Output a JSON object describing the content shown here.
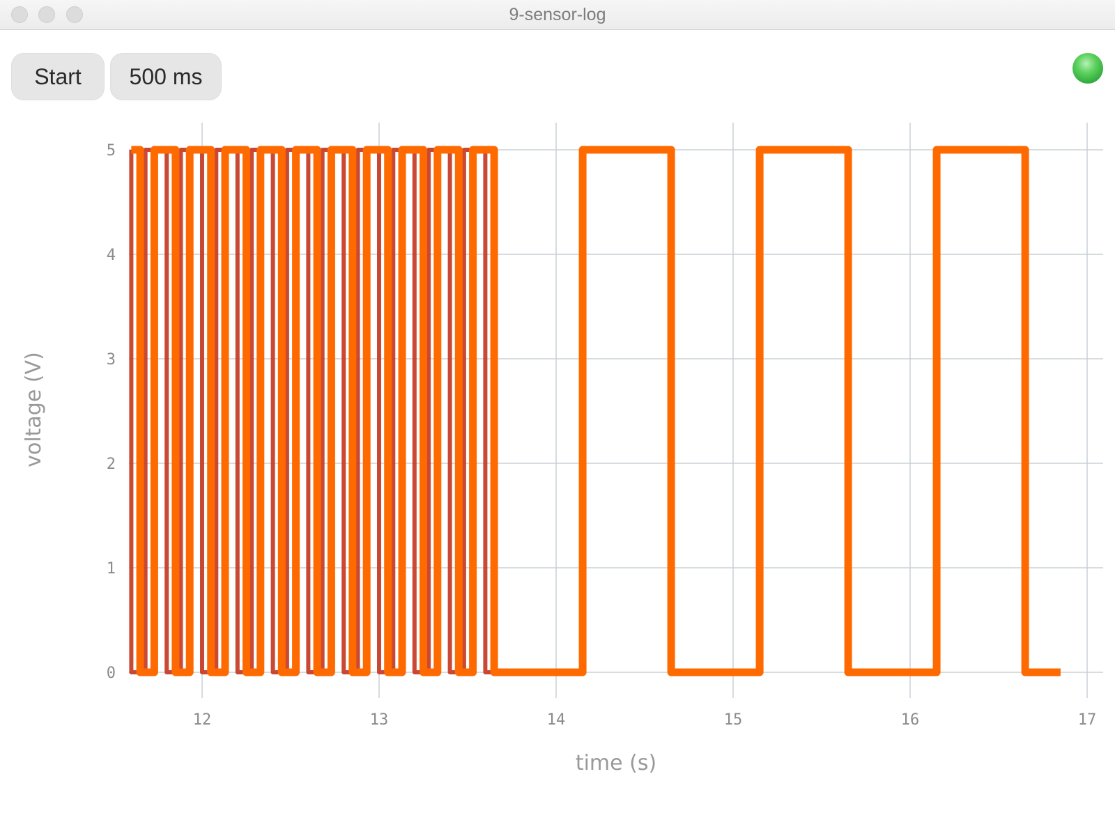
{
  "window": {
    "title": "9-sensor-log"
  },
  "toolbar": {
    "start_label": "Start",
    "interval_label": "500 ms"
  },
  "status": {
    "color": "#3cb94a",
    "icon": "status-led-icon"
  },
  "chart_data": {
    "type": "line",
    "xlabel": "time (s)",
    "ylabel": "voltage (V)",
    "xlim": [
      11.6,
      17.1
    ],
    "ylim": [
      -0.15,
      5.25
    ],
    "xticks": [
      12,
      13,
      14,
      15,
      16,
      17
    ],
    "yticks": [
      0,
      1,
      2,
      3,
      4,
      5
    ],
    "grid": true,
    "series": [
      {
        "color": "#ff6a00",
        "step": true,
        "points": [
          [
            11.6,
            5
          ],
          [
            11.65,
            5
          ],
          [
            11.65,
            0
          ],
          [
            11.73,
            0
          ],
          [
            11.73,
            5
          ],
          [
            11.85,
            5
          ],
          [
            11.85,
            0
          ],
          [
            11.93,
            0
          ],
          [
            11.93,
            5
          ],
          [
            12.05,
            5
          ],
          [
            12.05,
            0
          ],
          [
            12.13,
            0
          ],
          [
            12.13,
            5
          ],
          [
            12.25,
            5
          ],
          [
            12.25,
            0
          ],
          [
            12.33,
            0
          ],
          [
            12.33,
            5
          ],
          [
            12.45,
            5
          ],
          [
            12.45,
            0
          ],
          [
            12.53,
            0
          ],
          [
            12.53,
            5
          ],
          [
            12.65,
            5
          ],
          [
            12.65,
            0
          ],
          [
            12.73,
            0
          ],
          [
            12.73,
            5
          ],
          [
            12.85,
            5
          ],
          [
            12.85,
            0
          ],
          [
            12.93,
            0
          ],
          [
            12.93,
            5
          ],
          [
            13.05,
            5
          ],
          [
            13.05,
            0
          ],
          [
            13.13,
            0
          ],
          [
            13.13,
            5
          ],
          [
            13.25,
            5
          ],
          [
            13.25,
            0
          ],
          [
            13.33,
            0
          ],
          [
            13.33,
            5
          ],
          [
            13.45,
            5
          ],
          [
            13.45,
            0
          ],
          [
            13.53,
            0
          ],
          [
            13.53,
            5
          ],
          [
            13.65,
            5
          ],
          [
            13.65,
            0
          ],
          [
            14.15,
            0
          ],
          [
            14.15,
            5
          ],
          [
            14.65,
            5
          ],
          [
            14.65,
            0
          ],
          [
            15.15,
            0
          ],
          [
            15.15,
            5
          ],
          [
            15.65,
            5
          ],
          [
            15.65,
            0
          ],
          [
            16.15,
            0
          ],
          [
            16.15,
            5
          ],
          [
            16.65,
            5
          ],
          [
            16.65,
            0
          ],
          [
            16.85,
            0
          ]
        ]
      },
      {
        "color": "#c4351e",
        "step": true,
        "points": [
          [
            11.6,
            5
          ],
          [
            11.6,
            0
          ],
          [
            11.68,
            0
          ],
          [
            11.68,
            5
          ],
          [
            11.8,
            5
          ],
          [
            11.8,
            0
          ],
          [
            11.88,
            0
          ],
          [
            11.88,
            5
          ],
          [
            12.0,
            5
          ],
          [
            12.0,
            0
          ],
          [
            12.08,
            0
          ],
          [
            12.08,
            5
          ],
          [
            12.2,
            5
          ],
          [
            12.2,
            0
          ],
          [
            12.28,
            0
          ],
          [
            12.28,
            5
          ],
          [
            12.4,
            5
          ],
          [
            12.4,
            0
          ],
          [
            12.48,
            0
          ],
          [
            12.48,
            5
          ],
          [
            12.6,
            5
          ],
          [
            12.6,
            0
          ],
          [
            12.68,
            0
          ],
          [
            12.68,
            5
          ],
          [
            12.8,
            5
          ],
          [
            12.8,
            0
          ],
          [
            12.88,
            0
          ],
          [
            12.88,
            5
          ],
          [
            13.0,
            5
          ],
          [
            13.0,
            0
          ],
          [
            13.08,
            0
          ],
          [
            13.08,
            5
          ],
          [
            13.2,
            5
          ],
          [
            13.2,
            0
          ],
          [
            13.28,
            0
          ],
          [
            13.28,
            5
          ],
          [
            13.4,
            5
          ],
          [
            13.4,
            0
          ],
          [
            13.48,
            0
          ],
          [
            13.48,
            5
          ],
          [
            13.6,
            5
          ],
          [
            13.6,
            0
          ],
          [
            13.65,
            0
          ]
        ]
      }
    ]
  }
}
